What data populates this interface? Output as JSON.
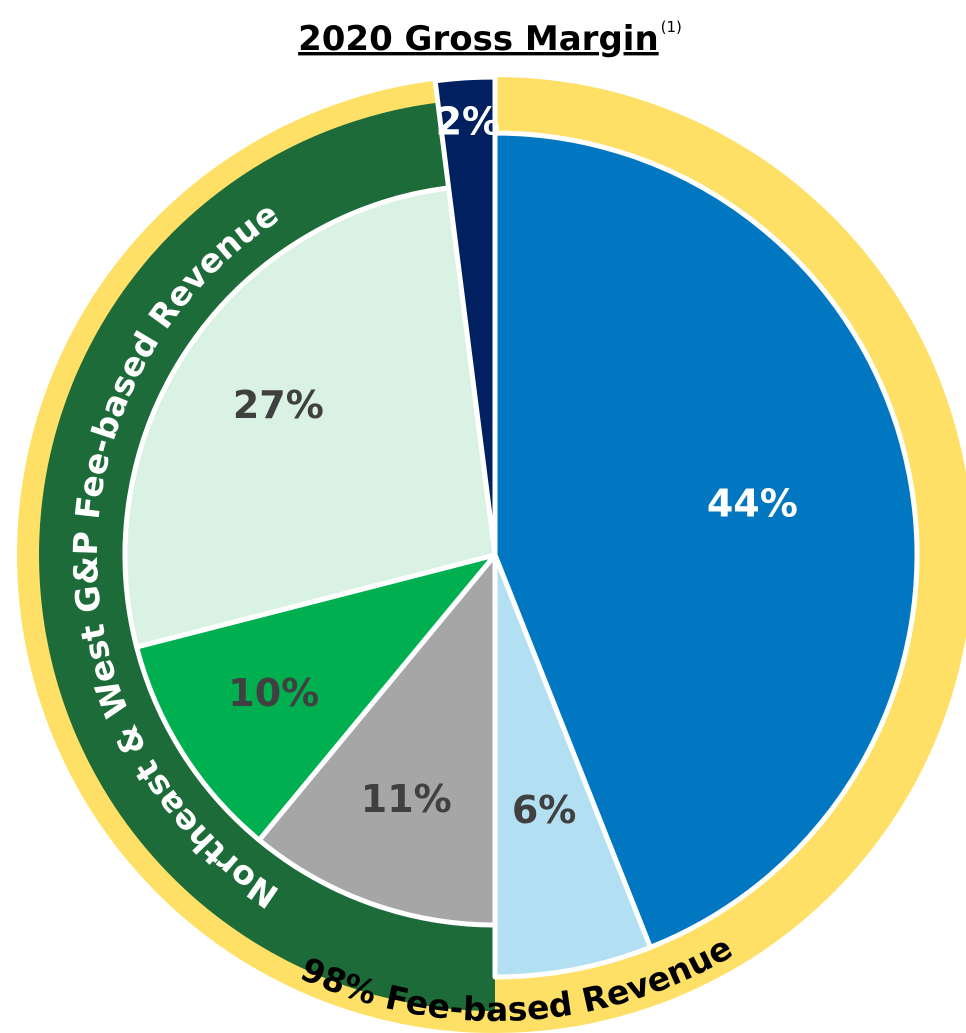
{
  "chart_data": {
    "type": "pie",
    "title": "2020 Gross Margin",
    "title_note": "(1)",
    "values": [
      44,
      6,
      11,
      10,
      27,
      2
    ],
    "value_labels": [
      "44%",
      "6%",
      "11%",
      "10%",
      "27%",
      "2%"
    ],
    "colors": [
      "#0077c0",
      "#b3dff2",
      "#a6a6a6",
      "#00b050",
      "#d9f2e4",
      "#002060"
    ],
    "label_colors": [
      "#ffffff",
      "#404040",
      "#404040",
      "#404040",
      "#404040",
      "#ffffff"
    ],
    "annotations": [
      "98% Fee-based Revenue",
      "Northeast & West G&P Fee-based Revenue"
    ]
  }
}
